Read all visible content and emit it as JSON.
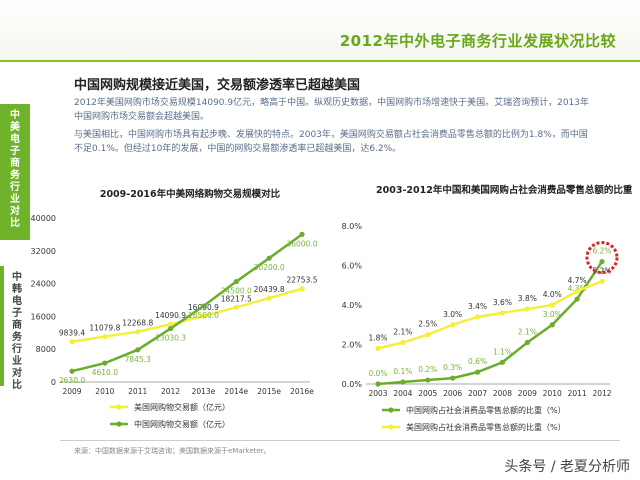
{
  "header": {
    "title": "2012年中外电子商务行业发展状况比较"
  },
  "sidebar": {
    "tabs": [
      {
        "label": "中美电子商务行业对比"
      },
      {
        "label": "中韩电子商务行业对比"
      }
    ]
  },
  "content": {
    "headline": "中国网购规模接近美国，交易额渗透率已超越美国",
    "paragraph1": "2012年美国网购市场交易规模14090.9亿元，略高于中国。纵观历史数据，中国网购市场增速快于美国。艾瑞咨询预计，2013年中国网购市场交易额会超越美国。",
    "paragraph2": "与美国相比，中国网购市场具有起步晚、发展快的特点。2003年，美国网购交易额占社会消费品零售总额的比例为1.8%，而中国不足0.1%。但经过10年的发展，中国的网购交易额渗透率已超越美国，达6.2%。",
    "source": "来源：中国数据来源于艾瑞咨询；美国数据来源于eMarketer。",
    "watermark": "头条号 / 老夏分析师"
  },
  "chart_data": [
    {
      "type": "line",
      "title": "2009-2016年中美网络购物交易规模对比",
      "x": [
        "2009",
        "2010",
        "2011",
        "2012",
        "2013e",
        "2014e",
        "2015e",
        "2016e"
      ],
      "ylim": [
        0,
        40000
      ],
      "yticks": [
        "0",
        "8000",
        "16000",
        "24000",
        "32000",
        "40000"
      ],
      "grid": false,
      "legend": "bottom",
      "series": [
        {
          "name": "美国网购物交易额（亿元）",
          "color": "#f5ef3a",
          "values": [
            9839.4,
            11079.8,
            12268.8,
            14090.9,
            16090.9,
            18217.5,
            20439.8,
            22753.5
          ]
        },
        {
          "name": "中国网购物交易额（亿元）",
          "color": "#6aac2b",
          "values": [
            2630.0,
            4610.0,
            7845.3,
            13030.3,
            18500.0,
            24500.0,
            30200.0,
            36000.0
          ]
        }
      ]
    },
    {
      "type": "line",
      "title": "2003-2012年中国和美国网购占社会消费品零售总额的比重",
      "x": [
        "2003",
        "2004",
        "2005",
        "2006",
        "2007",
        "2008",
        "2009",
        "2010",
        "2011",
        "2012"
      ],
      "ylim": [
        0,
        8
      ],
      "yticks": [
        "0.0%",
        "2.0%",
        "4.0%",
        "6.0%",
        "8.0%"
      ],
      "grid": false,
      "legend": "bottom",
      "series": [
        {
          "name": "中国网购占社会消费品零售总额的比重（%）",
          "color": "#6aac2b",
          "values": [
            0.0,
            0.1,
            0.2,
            0.3,
            0.6,
            1.1,
            2.1,
            3.0,
            4.3,
            6.2
          ]
        },
        {
          "name": "美国网购占社会消费品零售总额的比重（%）",
          "color": "#f5ef3a",
          "values": [
            1.8,
            2.1,
            2.5,
            3.0,
            3.4,
            3.6,
            3.8,
            4.0,
            4.7,
            5.2
          ]
        }
      ],
      "highlight": {
        "series": 0,
        "index": 9,
        "color": "#d9252a"
      }
    }
  ]
}
